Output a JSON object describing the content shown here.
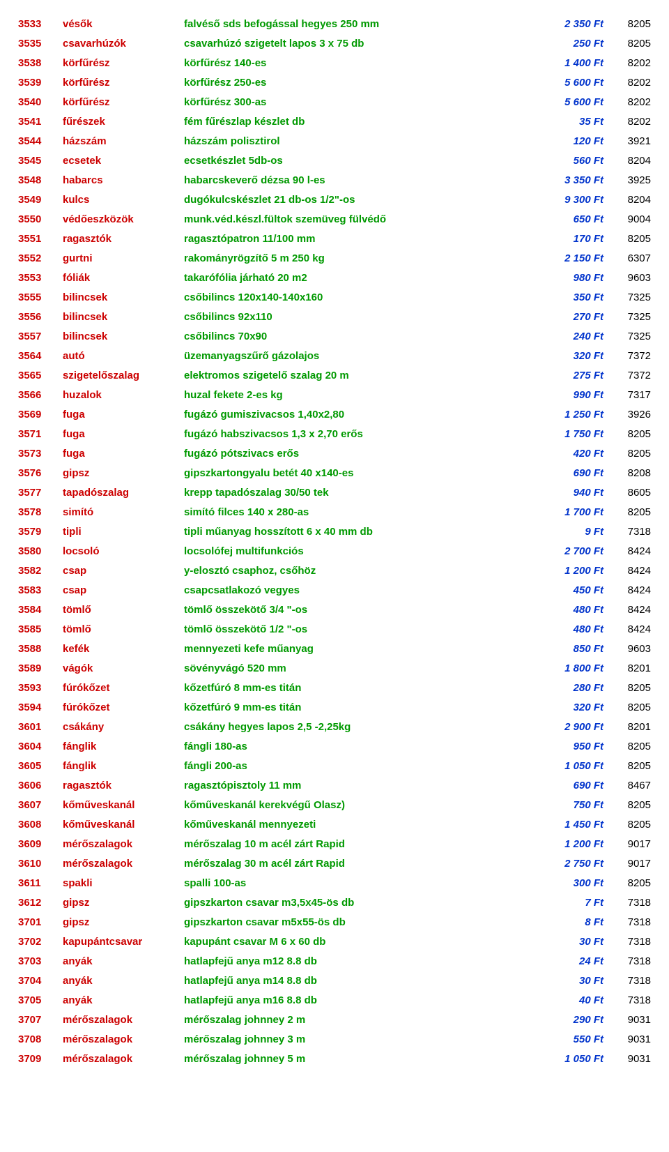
{
  "rows": [
    {
      "code": "3533",
      "cat": "vésők",
      "desc": "falvéső sds befogással hegyes 250 mm",
      "price": "2 350 Ft",
      "last": "8205"
    },
    {
      "code": "3535",
      "cat": "csavarhúzók",
      "desc": "csavarhúzó szigetelt lapos 3 x 75  db",
      "price": "250 Ft",
      "last": "8205"
    },
    {
      "code": "3538",
      "cat": "körfűrész",
      "desc": "körfűrész 140-es",
      "price": "1 400 Ft",
      "last": "8202"
    },
    {
      "code": "3539",
      "cat": "körfűrész",
      "desc": "körfűrész 250-es",
      "price": "5 600 Ft",
      "last": "8202"
    },
    {
      "code": "3540",
      "cat": "körfűrész",
      "desc": "körfűrész 300-as",
      "price": "5 600 Ft",
      "last": "8202"
    },
    {
      "code": "3541",
      "cat": "fűrészek",
      "desc": "fém fűrészlap készlet db",
      "price": "35 Ft",
      "last": "8202"
    },
    {
      "code": "3544",
      "cat": "házszám",
      "desc": "házszám polisztirol",
      "price": "120 Ft",
      "last": "3921"
    },
    {
      "code": "3545",
      "cat": "ecsetek",
      "desc": "ecsetkészlet 5db-os",
      "price": "560 Ft",
      "last": "8204"
    },
    {
      "code": "3548",
      "cat": "habarcs",
      "desc": "habarcskeverő dézsa 90 l-es",
      "price": "3 350 Ft",
      "last": "3925"
    },
    {
      "code": "3549",
      "cat": "kulcs",
      "desc": "dugókulcskészlet 21 db-os 1/2\"-os",
      "price": "9 300 Ft",
      "last": "8204"
    },
    {
      "code": "3550",
      "cat": "védőeszközök",
      "desc": "munk.véd.készl.fültok szemüveg fülvédő",
      "price": "650 Ft",
      "last": "9004"
    },
    {
      "code": "3551",
      "cat": "ragasztók",
      "desc": "ragasztópatron 11/100 mm",
      "price": "170 Ft",
      "last": "8205"
    },
    {
      "code": "3552",
      "cat": "gurtni",
      "desc": "rakományrögzítő 5 m 250 kg",
      "price": "2 150 Ft",
      "last": "6307"
    },
    {
      "code": "3553",
      "cat": "fóliák",
      "desc": "takarófólia járható 20 m2",
      "price": "980 Ft",
      "last": "9603"
    },
    {
      "code": "3555",
      "cat": "bilincsek",
      "desc": "csőbilincs 120x140-140x160",
      "price": "350 Ft",
      "last": "7325"
    },
    {
      "code": "3556",
      "cat": "bilincsek",
      "desc": "csőbilincs 92x110",
      "price": "270 Ft",
      "last": "7325"
    },
    {
      "code": "3557",
      "cat": "bilincsek",
      "desc": "csőbilincs 70x90",
      "price": "240 Ft",
      "last": "7325"
    },
    {
      "code": "3564",
      "cat": "autó",
      "desc": "üzemanyagszűrő gázolajos",
      "price": "320 Ft",
      "last": "7372"
    },
    {
      "code": "3565",
      "cat": "szigetelőszalag",
      "desc": "elektromos szigetelő szalag 20 m",
      "price": "275 Ft",
      "last": "7372"
    },
    {
      "code": "3566",
      "cat": "huzalok",
      "desc": " huzal fekete 2-es kg",
      "price": "990 Ft",
      "last": "7317"
    },
    {
      "code": "3569",
      "cat": "fuga",
      "desc": "fugázó gumiszivacsos 1,40x2,80",
      "price": "1 250 Ft",
      "last": "3926"
    },
    {
      "code": "3571",
      "cat": "fuga",
      "desc": "fugázó habszivacsos 1,3 x 2,70 erős",
      "price": "1 750 Ft",
      "last": "8205"
    },
    {
      "code": "3573",
      "cat": "fuga",
      "desc": "fugázó pótszivacs erős",
      "price": "420 Ft",
      "last": "8205"
    },
    {
      "code": "3576",
      "cat": "gipsz",
      "desc": "gipszkartongyalu betét 40 x140-es",
      "price": "690 Ft",
      "last": "8208"
    },
    {
      "code": "3577",
      "cat": "tapadószalag",
      "desc": "krepp tapadószalag 30/50 tek",
      "price": "940 Ft",
      "last": "8605"
    },
    {
      "code": "3578",
      "cat": "simító",
      "desc": "simító filces 140 x 280-as",
      "price": "1 700 Ft",
      "last": "8205"
    },
    {
      "code": "3579",
      "cat": "tipli",
      "desc": "tipli műanyag hosszított 6 x 40 mm db",
      "price": "9 Ft",
      "last": "7318"
    },
    {
      "code": "3580",
      "cat": "locsoló",
      "desc": "locsolófej multifunkciós",
      "price": "2 700 Ft",
      "last": "8424"
    },
    {
      "code": "3582",
      "cat": "csap",
      "desc": "y-elosztó csaphoz, csőhöz",
      "price": "1 200 Ft",
      "last": "8424"
    },
    {
      "code": "3583",
      "cat": "csap",
      "desc": "csapcsatlakozó vegyes",
      "price": "450 Ft",
      "last": "8424"
    },
    {
      "code": "3584",
      "cat": "tömlő",
      "desc": "tömlő összekötő 3/4 \"-os",
      "price": "480 Ft",
      "last": "8424"
    },
    {
      "code": "3585",
      "cat": "tömlő",
      "desc": "tömlő összekötő 1/2 \"-os",
      "price": "480 Ft",
      "last": "8424"
    },
    {
      "code": "3588",
      "cat": "kefék",
      "desc": "mennyezeti kefe műanyag",
      "price": "850 Ft",
      "last": "9603"
    },
    {
      "code": "3589",
      "cat": "vágók",
      "desc": "sövényvágó 520 mm",
      "price": "1 800 Ft",
      "last": "8201"
    },
    {
      "code": "3593",
      "cat": "fúrókőzet",
      "desc": "kőzetfúró 8 mm-es titán",
      "price": "280 Ft",
      "last": "8205"
    },
    {
      "code": "3594",
      "cat": "fúrókőzet",
      "desc": "kőzetfúró 9 mm-es titán",
      "price": "320 Ft",
      "last": "8205"
    },
    {
      "code": "3601",
      "cat": "csákány",
      "desc": "csákány hegyes lapos 2,5 -2,25kg",
      "price": "2 900 Ft",
      "last": "8201"
    },
    {
      "code": "3604",
      "cat": "fánglik",
      "desc": "fángli 180-as",
      "price": "950 Ft",
      "last": "8205"
    },
    {
      "code": "3605",
      "cat": "fánglik",
      "desc": "fángli 200-as",
      "price": "1 050 Ft",
      "last": "8205"
    },
    {
      "code": "3606",
      "cat": "ragasztók",
      "desc": "ragasztópisztoly 11 mm",
      "price": "690 Ft",
      "last": "8467"
    },
    {
      "code": "3607",
      "cat": "kőműveskanál",
      "desc": "kőműveskanál kerekvégű Olasz)",
      "price": "750 Ft",
      "last": "8205"
    },
    {
      "code": "3608",
      "cat": "kőműveskanál",
      "desc": "kőműveskanál mennyezeti",
      "price": "1 450 Ft",
      "last": "8205"
    },
    {
      "code": "3609",
      "cat": "mérőszalagok",
      "desc": "mérőszalag 10 m acél zárt Rapid",
      "price": "1 200 Ft",
      "last": "9017"
    },
    {
      "code": "3610",
      "cat": "mérőszalagok",
      "desc": "mérőszalag 30 m acél zárt Rapid",
      "price": "2 750 Ft",
      "last": "9017"
    },
    {
      "code": "3611",
      "cat": "spakli",
      "desc": "spalli 100-as",
      "price": "300 Ft",
      "last": "8205"
    },
    {
      "code": "3612",
      "cat": "gipsz",
      "desc": "gipszkarton csavar m3,5x45-ös db",
      "price": "7 Ft",
      "last": "7318"
    },
    {
      "code": "3701",
      "cat": "gipsz",
      "desc": "gipszkarton csavar m5x55-ös db",
      "price": "8 Ft",
      "last": "7318"
    },
    {
      "code": "3702",
      "cat": "kapupántcsavar",
      "desc": "kapupánt csavar M 6 x 60  db",
      "price": "30 Ft",
      "last": "7318"
    },
    {
      "code": "3703",
      "cat": "anyák",
      "desc": "hatlapfejű anya m12  8.8 db",
      "price": "24 Ft",
      "last": "7318"
    },
    {
      "code": "3704",
      "cat": "anyák",
      "desc": "hatlapfejű anya m14  8.8 db",
      "price": "30 Ft",
      "last": "7318"
    },
    {
      "code": "3705",
      "cat": "anyák",
      "desc": "hatlapfejű anya m16  8.8 db",
      "price": "40 Ft",
      "last": "7318"
    },
    {
      "code": "3707",
      "cat": "mérőszalagok",
      "desc": "mérőszalag johnney  2 m",
      "price": "290 Ft",
      "last": "9031"
    },
    {
      "code": "3708",
      "cat": "mérőszalagok",
      "desc": "mérőszalag johnney  3 m",
      "price": "550 Ft",
      "last": "9031"
    },
    {
      "code": "3709",
      "cat": "mérőszalagok",
      "desc": "mérőszalag johnney  5 m",
      "price": "1 050 Ft",
      "last": "9031"
    }
  ]
}
